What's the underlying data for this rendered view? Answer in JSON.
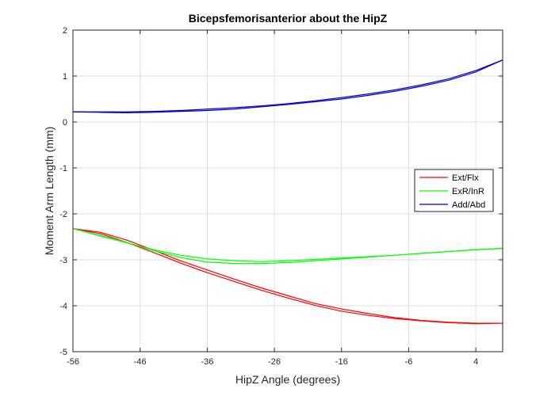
{
  "chart_data": {
    "type": "line",
    "title": "Bicepsfemorisanterior about the HipZ",
    "xlabel": "HipZ Angle (degrees)",
    "ylabel": "Moment Arm Length (mm)",
    "xlim": [
      -56,
      8
    ],
    "ylim": [
      -5,
      2
    ],
    "xticks": [
      -56,
      -46,
      -36,
      -26,
      -16,
      -6,
      4
    ],
    "yticks": [
      -5,
      -4,
      -3,
      -2,
      -1,
      0,
      1,
      2
    ],
    "xtick_labels": [
      "-56",
      "-46",
      "-36",
      "-26",
      "-16",
      "-6",
      "4"
    ],
    "ytick_labels": [
      "-5",
      "-4",
      "-3",
      "-2",
      "-1",
      "0",
      "1",
      "2"
    ],
    "grid": true,
    "legend_position": "right",
    "series": [
      {
        "name": "Ext/Flx",
        "color": "#ff0000",
        "x": [
          -56,
          -52,
          -48,
          -44,
          -40,
          -36,
          -32,
          -28,
          -24,
          -20,
          -16,
          -12,
          -8,
          -4,
          0,
          4,
          8
        ],
        "curves": [
          [
            -2.32,
            -2.4,
            -2.57,
            -2.79,
            -3.02,
            -3.22,
            -3.42,
            -3.61,
            -3.78,
            -3.95,
            -4.07,
            -4.17,
            -4.26,
            -4.32,
            -4.36,
            -4.38,
            -4.38
          ],
          [
            -2.32,
            -2.43,
            -2.62,
            -2.84,
            -3.07,
            -3.28,
            -3.47,
            -3.66,
            -3.83,
            -3.99,
            -4.12,
            -4.21,
            -4.28,
            -4.33,
            -4.37,
            -4.39,
            -4.38
          ]
        ]
      },
      {
        "name": "ExR/InR",
        "color": "#00ff00",
        "x": [
          -56,
          -52,
          -48,
          -44,
          -40,
          -36,
          -32,
          -28,
          -24,
          -20,
          -16,
          -12,
          -8,
          -4,
          0,
          4,
          8
        ],
        "curves": [
          [
            -2.32,
            -2.48,
            -2.63,
            -2.78,
            -2.9,
            -2.98,
            -3.02,
            -3.04,
            -3.02,
            -2.99,
            -2.96,
            -2.93,
            -2.9,
            -2.86,
            -2.82,
            -2.78,
            -2.75
          ],
          [
            -2.32,
            -2.47,
            -2.62,
            -2.8,
            -2.95,
            -3.05,
            -3.08,
            -3.08,
            -3.06,
            -3.02,
            -2.98,
            -2.94,
            -2.9,
            -2.86,
            -2.82,
            -2.78,
            -2.75
          ]
        ]
      },
      {
        "name": "Add/Abd",
        "color": "#0000cc",
        "x": [
          -56,
          -52,
          -48,
          -44,
          -40,
          -36,
          -32,
          -28,
          -24,
          -20,
          -16,
          -12,
          -8,
          -4,
          0,
          4,
          8
        ],
        "curves": [
          [
            0.22,
            0.22,
            0.22,
            0.23,
            0.25,
            0.28,
            0.31,
            0.35,
            0.4,
            0.46,
            0.53,
            0.61,
            0.7,
            0.81,
            0.94,
            1.12,
            1.35
          ],
          [
            0.22,
            0.21,
            0.2,
            0.21,
            0.23,
            0.25,
            0.28,
            0.33,
            0.38,
            0.44,
            0.5,
            0.58,
            0.67,
            0.78,
            0.91,
            1.09,
            1.35
          ]
        ]
      }
    ]
  }
}
